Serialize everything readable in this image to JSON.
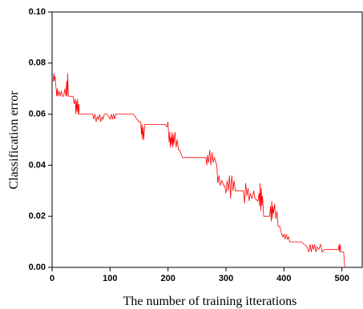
{
  "chart_data": {
    "type": "line",
    "xlabel": "The number of training itterations",
    "ylabel": "Classification error",
    "xlim": [
      0,
      535
    ],
    "ylim": [
      0,
      0.1
    ],
    "xticks": [
      0,
      100,
      200,
      300,
      400,
      500
    ],
    "yticks": [
      {
        "value": 0,
        "label": "0.00"
      },
      {
        "value": 0.02,
        "label": "0.02"
      },
      {
        "value": 0.04,
        "label": "0.04"
      },
      {
        "value": 0.06,
        "label": "0.06"
      },
      {
        "value": 0.08,
        "label": "0.08"
      },
      {
        "value": 0.1,
        "label": "0.10"
      }
    ],
    "x": [
      0,
      2,
      3,
      4,
      5,
      6,
      7,
      8,
      9,
      10,
      12,
      14,
      16,
      18,
      20,
      22,
      24,
      25,
      26,
      27,
      28,
      30,
      33,
      36,
      38,
      40,
      41,
      42,
      43,
      44,
      45,
      46,
      47,
      48,
      55,
      65,
      70,
      72,
      74,
      76,
      78,
      80,
      82,
      84,
      86,
      88,
      90,
      95,
      100,
      102,
      104,
      106,
      108,
      110,
      120,
      140,
      150,
      153,
      154,
      155,
      156,
      157,
      158,
      160,
      175,
      190,
      195,
      198,
      200,
      201,
      202,
      203,
      204,
      205,
      206,
      207,
      208,
      209,
      210,
      212,
      214,
      216,
      218,
      220,
      225,
      240,
      260,
      265,
      267,
      268,
      270,
      272,
      274,
      276,
      278,
      280,
      284,
      286,
      288,
      290,
      293,
      296,
      298,
      300,
      302,
      304,
      306,
      308,
      310,
      312,
      314,
      316,
      320,
      325,
      330,
      332,
      334,
      336,
      338,
      340,
      342,
      345,
      348,
      350,
      355,
      357,
      358,
      359,
      360,
      361,
      362,
      363,
      365,
      370,
      375,
      377,
      378,
      379,
      380,
      381,
      382,
      384,
      386,
      388,
      390,
      393,
      396,
      398,
      400,
      402,
      404,
      406,
      408,
      410,
      420,
      430,
      440,
      443,
      445,
      447,
      449,
      451,
      453,
      455,
      457,
      460,
      463,
      466,
      470,
      480,
      490,
      494,
      495,
      496,
      497,
      498,
      500,
      503,
      505
    ],
    "series": [
      {
        "color": "#ff0000",
        "values": [
          0.073,
          0.073,
          0.076,
          0.073,
          0.075,
          0.072,
          0.07,
          0.067,
          0.07,
          0.067,
          0.069,
          0.067,
          0.069,
          0.067,
          0.067,
          0.07,
          0.067,
          0.073,
          0.067,
          0.076,
          0.067,
          0.067,
          0.067,
          0.067,
          0.064,
          0.066,
          0.06,
          0.065,
          0.061,
          0.066,
          0.06,
          0.064,
          0.06,
          0.06,
          0.06,
          0.06,
          0.06,
          0.058,
          0.06,
          0.057,
          0.059,
          0.058,
          0.06,
          0.057,
          0.059,
          0.058,
          0.06,
          0.06,
          0.058,
          0.06,
          0.058,
          0.06,
          0.058,
          0.06,
          0.06,
          0.06,
          0.057,
          0.057,
          0.052,
          0.056,
          0.05,
          0.055,
          0.05,
          0.056,
          0.056,
          0.056,
          0.056,
          0.055,
          0.057,
          0.052,
          0.049,
          0.053,
          0.047,
          0.051,
          0.048,
          0.053,
          0.047,
          0.052,
          0.048,
          0.053,
          0.047,
          0.05,
          0.046,
          0.046,
          0.043,
          0.043,
          0.043,
          0.043,
          0.04,
          0.044,
          0.041,
          0.046,
          0.04,
          0.045,
          0.041,
          0.043,
          0.04,
          0.033,
          0.036,
          0.032,
          0.034,
          0.032,
          0.032,
          0.029,
          0.034,
          0.03,
          0.036,
          0.027,
          0.036,
          0.03,
          0.034,
          0.03,
          0.03,
          0.03,
          0.03,
          0.025,
          0.033,
          0.028,
          0.031,
          0.026,
          0.029,
          0.027,
          0.03,
          0.027,
          0.026,
          0.029,
          0.024,
          0.033,
          0.022,
          0.031,
          0.024,
          0.028,
          0.02,
          0.02,
          0.02,
          0.024,
          0.018,
          0.026,
          0.019,
          0.024,
          0.021,
          0.025,
          0.019,
          0.022,
          0.016,
          0.016,
          0.013,
          0.012,
          0.013,
          0.011,
          0.013,
          0.011,
          0.012,
          0.01,
          0.01,
          0.01,
          0.008,
          0.006,
          0.009,
          0.006,
          0.009,
          0.007,
          0.009,
          0.006,
          0.008,
          0.007,
          0.009,
          0.006,
          0.007,
          0.007,
          0.007,
          0.007,
          0.009,
          0.006,
          0.009,
          0.006,
          0.006,
          0.006,
          0.0
        ]
      }
    ]
  }
}
